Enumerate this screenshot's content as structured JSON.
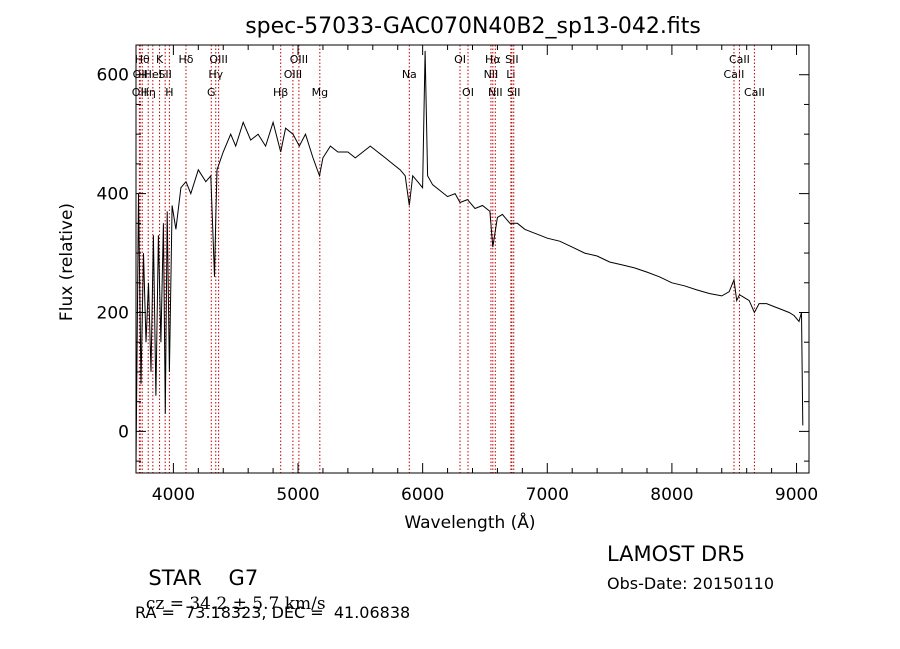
{
  "chart_data": {
    "type": "line",
    "title": "spec-57033-GAC070N40B2_sp13-042.fits",
    "xlabel": "Wavelength (Å)",
    "ylabel": "Flux (relative)",
    "xlim": [
      3700,
      9100
    ],
    "ylim": [
      -70,
      650
    ],
    "x_ticks": [
      4000,
      5000,
      6000,
      7000,
      8000,
      9000
    ],
    "x_tick_labels": [
      "4000",
      "5000",
      "6000",
      "7000",
      "8000",
      "9000"
    ],
    "y_ticks": [
      0,
      200,
      400,
      600
    ],
    "y_tick_labels": [
      "0",
      "200",
      "400",
      "600"
    ],
    "grid": false,
    "series": [
      {
        "x": [
          3700,
          3720,
          3740,
          3760,
          3780,
          3800,
          3820,
          3840,
          3860,
          3880,
          3900,
          3920,
          3935,
          3950,
          3968,
          3990,
          4020,
          4060,
          4101,
          4140,
          4200,
          4260,
          4300,
          4330,
          4340,
          4350,
          4400,
          4460,
          4500,
          4560,
          4620,
          4680,
          4740,
          4800,
          4861,
          4900,
          4960,
          5010,
          5060,
          5120,
          5172,
          5200,
          5260,
          5320,
          5400,
          5460,
          5520,
          5580,
          5640,
          5700,
          5760,
          5820,
          5860,
          5893,
          5920,
          5960,
          6000,
          6020,
          6040,
          6080,
          6140,
          6200,
          6260,
          6300,
          6360,
          6420,
          6480,
          6540,
          6563,
          6600,
          6640,
          6700,
          6760,
          6820,
          6880,
          6940,
          7000,
          7100,
          7200,
          7300,
          7400,
          7500,
          7600,
          7700,
          7800,
          7900,
          8000,
          8100,
          8200,
          8300,
          8400,
          8460,
          8498,
          8520,
          8542,
          8580,
          8620,
          8662,
          8700,
          8760,
          8820,
          8880,
          8940,
          8980,
          9020,
          9040,
          9050
        ],
        "y": [
          -60,
          400,
          80,
          300,
          150,
          250,
          100,
          330,
          60,
          330,
          150,
          350,
          30,
          370,
          100,
          380,
          340,
          410,
          420,
          400,
          440,
          420,
          430,
          260,
          360,
          440,
          470,
          500,
          480,
          520,
          490,
          500,
          480,
          520,
          470,
          510,
          500,
          480,
          500,
          460,
          430,
          460,
          480,
          470,
          470,
          460,
          470,
          480,
          470,
          460,
          450,
          440,
          430,
          380,
          430,
          420,
          410,
          640,
          430,
          415,
          405,
          395,
          400,
          385,
          390,
          375,
          380,
          370,
          310,
          360,
          365,
          350,
          350,
          340,
          335,
          330,
          325,
          320,
          310,
          300,
          295,
          285,
          280,
          275,
          268,
          260,
          250,
          245,
          238,
          232,
          228,
          235,
          255,
          220,
          230,
          225,
          220,
          200,
          215,
          215,
          210,
          205,
          200,
          195,
          185,
          200,
          10
        ]
      }
    ],
    "line_markers": [
      {
        "x": 3727,
        "label": "OII",
        "row": 3
      },
      {
        "x": 3734,
        "label": "OII",
        "row": 2
      },
      {
        "x": 3750,
        "label": "Hθ",
        "row": 1
      },
      {
        "x": 3798,
        "label": "Hη",
        "row": 3
      },
      {
        "x": 3835,
        "label": "HeI",
        "row": 2
      },
      {
        "x": 3889,
        "label": "K",
        "row": 1
      },
      {
        "x": 3934,
        "label": "SII",
        "row": 2
      },
      {
        "x": 3968,
        "label": "H",
        "row": 3
      },
      {
        "x": 4101,
        "label": "Hδ",
        "row": 1
      },
      {
        "x": 4304,
        "label": "G",
        "row": 3
      },
      {
        "x": 4340,
        "label": "Hγ",
        "row": 2
      },
      {
        "x": 4363,
        "label": "OIII",
        "row": 1
      },
      {
        "x": 4861,
        "label": "Hβ",
        "row": 3
      },
      {
        "x": 4959,
        "label": "OIII",
        "row": 2
      },
      {
        "x": 5007,
        "label": "OIII",
        "row": 1
      },
      {
        "x": 5175,
        "label": "Mg",
        "row": 3
      },
      {
        "x": 5893,
        "label": "Na",
        "row": 2
      },
      {
        "x": 6300,
        "label": "OI",
        "row": 1
      },
      {
        "x": 6364,
        "label": "OI",
        "row": 3
      },
      {
        "x": 6548,
        "label": "NII",
        "row": 2
      },
      {
        "x": 6563,
        "label": "Hα",
        "row": 1
      },
      {
        "x": 6583,
        "label": "NII",
        "row": 3
      },
      {
        "x": 6708,
        "label": "Li",
        "row": 2
      },
      {
        "x": 6716,
        "label": "SII",
        "row": 1
      },
      {
        "x": 6731,
        "label": "SII",
        "row": 3
      },
      {
        "x": 8498,
        "label": "CaII",
        "row": 2
      },
      {
        "x": 8542,
        "label": "CaII",
        "row": 1
      },
      {
        "x": 8662,
        "label": "CaII",
        "row": 3
      }
    ]
  },
  "info": {
    "class": "STAR",
    "subclass": "G7",
    "cz_prefix": "cz = ",
    "cz_value": "34.2",
    "cz_pm": "±",
    "cz_err": "5.7",
    "cz_unit": "km/s",
    "coords": "RA =  73.18323, DEC =  41.06838",
    "survey": "LAMOST DR5",
    "obs_date": "Obs-Date: 20150110"
  },
  "colors": {
    "axes": "#000000",
    "spectrum": "#000000",
    "markers": "#c00000",
    "background": "#ffffff"
  }
}
